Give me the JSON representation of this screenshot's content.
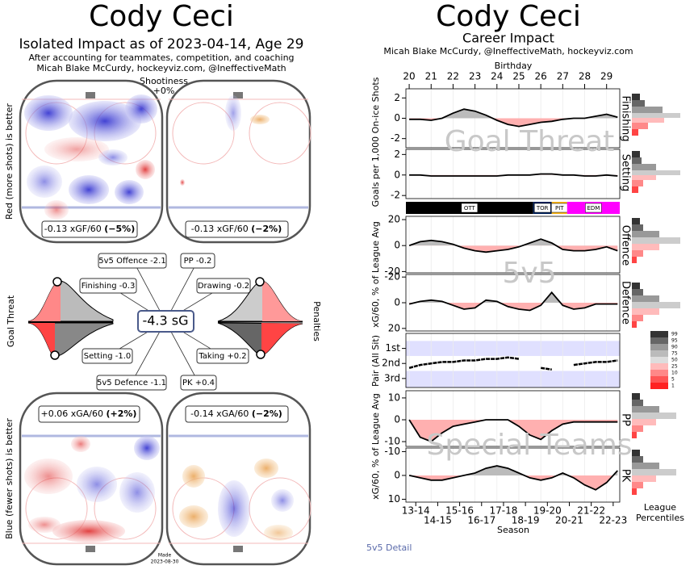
{
  "left": {
    "title": "Cody Ceci",
    "subtitle": "Isolated Impact as of 2023-04-14, Age 29",
    "notes": [
      "After accounting for teammates, competition, and coaching",
      "Micah Blake McCurdy, hockeyviz.com, @IneffectiveMath"
    ],
    "shootiness": "Shootiness",
    "shootiness_value": "+0%",
    "offence_axis_label": "Red (more shots) is better",
    "defence_axis_label": "Blue (fewer shots) is better",
    "rink_labels": [
      {
        "text": "-0.13 xGF/60",
        "pct": "(−5%)"
      },
      {
        "text": "-0.13 xGF/60",
        "pct": "(−2%)"
      },
      {
        "text": "+0.06 xGA/60",
        "pct": "(+2%)"
      },
      {
        "text": "-0.14 xGA/60",
        "pct": "(−2%)"
      }
    ],
    "total": "-4.3 sG",
    "components": [
      "5v5 Offence -2.1",
      "PP -0.2",
      "Finishing -0.3",
      "Drawing -0.2",
      "Setting -1.0",
      "Taking +0.2",
      "5v5 Defence -1.1",
      "PK +0.4"
    ],
    "goal_threat": "Goal Threat",
    "penalties": "Penalties",
    "made": "Made",
    "made_date": "2023-08-30"
  },
  "right": {
    "title": "Cody Ceci",
    "subtitle": "Career Impact",
    "note": "Micah Blake McCurdy, @IneffectiveMath, hockeyviz.com",
    "top_axis_label": "Birthday",
    "bottom_axis_label": "Season",
    "xlim": [
      19.85,
      29.6
    ],
    "xticks": [
      20,
      21,
      22,
      23,
      24,
      25,
      26,
      27,
      28,
      29
    ],
    "season_ticks": [
      {
        "value": 20.3,
        "label": "13-14"
      },
      {
        "value": 21.3,
        "label": "14-15"
      },
      {
        "value": 22.3,
        "label": "15-16"
      },
      {
        "value": 23.3,
        "label": "16-17"
      },
      {
        "value": 24.3,
        "label": "17-18"
      },
      {
        "value": 25.3,
        "label": "18-19"
      },
      {
        "value": 26.3,
        "label": "19-20"
      },
      {
        "value": 27.3,
        "label": "20-21"
      },
      {
        "value": 28.3,
        "label": "21-22"
      },
      {
        "value": 29.3,
        "label": "22-23"
      }
    ],
    "x": [
      20,
      20.5,
      21,
      21.5,
      22,
      22.5,
      23,
      23.5,
      24,
      24.5,
      25,
      25.5,
      26,
      26.5,
      27,
      27.5,
      28,
      28.5,
      29,
      29.5
    ],
    "y_labels": [
      "Goals per 1,000 On-ice Shots",
      "xG/60, % of League Avg",
      "Pair (All Sit)",
      "xG/60, % of League Avg"
    ],
    "watermarks": [
      "Goal Threat",
      "5v5",
      "Special Teams"
    ],
    "teams": [
      {
        "name": "OTT",
        "start": 19.85,
        "end": 25.65,
        "color": "#000000"
      },
      {
        "name": "TOR",
        "start": 25.65,
        "end": 26.5,
        "color": "#00205b"
      },
      {
        "name": "PIT",
        "start": 26.5,
        "end": 27.2,
        "color": "#fcb514"
      },
      {
        "name": "EDM",
        "start": 27.2,
        "end": 29.6,
        "color": "#ff00ff"
      }
    ],
    "panels": [
      {
        "label": "Finishing",
        "ylim": [
          -2.9,
          2.9
        ],
        "yticks": [
          -2,
          0,
          2
        ],
        "values": [
          -0.1,
          -0.1,
          -0.2,
          0,
          0.5,
          0.9,
          0.7,
          0.3,
          -0.2,
          -0.6,
          -0.8,
          -0.6,
          -0.4,
          -0.3,
          -0.1,
          0,
          0,
          0.2,
          0.4,
          0.1
        ]
      },
      {
        "label": "Setting",
        "ylim": [
          -2.3,
          2.5
        ],
        "yticks": [
          -2,
          0,
          2
        ],
        "values": [
          0,
          0,
          -0.1,
          -0.1,
          -0.1,
          -0.1,
          -0.1,
          -0.1,
          -0.1,
          0,
          0,
          0,
          0.1,
          0.1,
          0,
          0,
          -0.1,
          -0.1,
          0,
          -0.1
        ]
      },
      {
        "label": "Offence",
        "ylim": [
          -21,
          22.5
        ],
        "yticks": [
          -20,
          0,
          20
        ],
        "values": [
          0,
          3,
          4,
          3,
          1,
          -2,
          -4,
          -5,
          -4,
          -3,
          -1,
          2,
          5,
          2,
          -3,
          -4,
          -4,
          -3,
          -1,
          -4
        ]
      },
      {
        "label": "Defence",
        "ylim": [
          22,
          -22
        ],
        "yticks": [
          -20,
          0,
          20
        ],
        "values": [
          1,
          -1,
          -2,
          -1,
          2,
          5,
          4,
          -2,
          -1,
          3,
          5,
          6,
          2,
          -8,
          2,
          5,
          4,
          1,
          1,
          1
        ]
      },
      {
        "label": "PP",
        "ylim": [
          -12.2,
          13.3
        ],
        "yticks": [
          -10,
          0,
          10
        ],
        "values": [
          0,
          -8,
          -10,
          -6,
          -3,
          -2,
          -1,
          0,
          0,
          0,
          -3,
          -7,
          -9,
          -5,
          -2,
          -1,
          -1,
          -1,
          -1,
          -1
        ]
      },
      {
        "label": "PK",
        "ylim": [
          11.2,
          -11.5
        ],
        "yticks": [
          -10,
          0,
          10
        ],
        "values": [
          0,
          1,
          2,
          2,
          1,
          0,
          -1,
          -3,
          -4,
          -3,
          -1,
          1,
          2,
          1,
          -1,
          1,
          4,
          6,
          3,
          -2
        ]
      }
    ],
    "pair": {
      "ylim": [
        3.6,
        0
      ],
      "yticks": [
        {
          "value": 1,
          "label": "1st"
        },
        {
          "value": 2,
          "label": "2nd"
        },
        {
          "value": 3,
          "label": "3rd"
        }
      ],
      "values": [
        2.3,
        2.1,
        2.0,
        1.9,
        1.9,
        1.8,
        1.8,
        1.7,
        1.7,
        1.6,
        1.7,
        null,
        2.3,
        2.4,
        null,
        2.1,
        2.0,
        1.9,
        1.9,
        1.8
      ]
    },
    "percentile_labels": [
      "99",
      "95",
      "90",
      "75",
      "50",
      "25",
      "10",
      "5",
      "1"
    ],
    "percentile_colors": [
      "#333333",
      "#666666",
      "#999999",
      "#bbbbbb",
      "#dddddd",
      "#ffbbbb",
      "#ff8888",
      "#ff5555",
      "#ff2222"
    ],
    "percentile_title": [
      "League",
      "Percentiles"
    ]
  },
  "link": "5v5 Detail"
}
